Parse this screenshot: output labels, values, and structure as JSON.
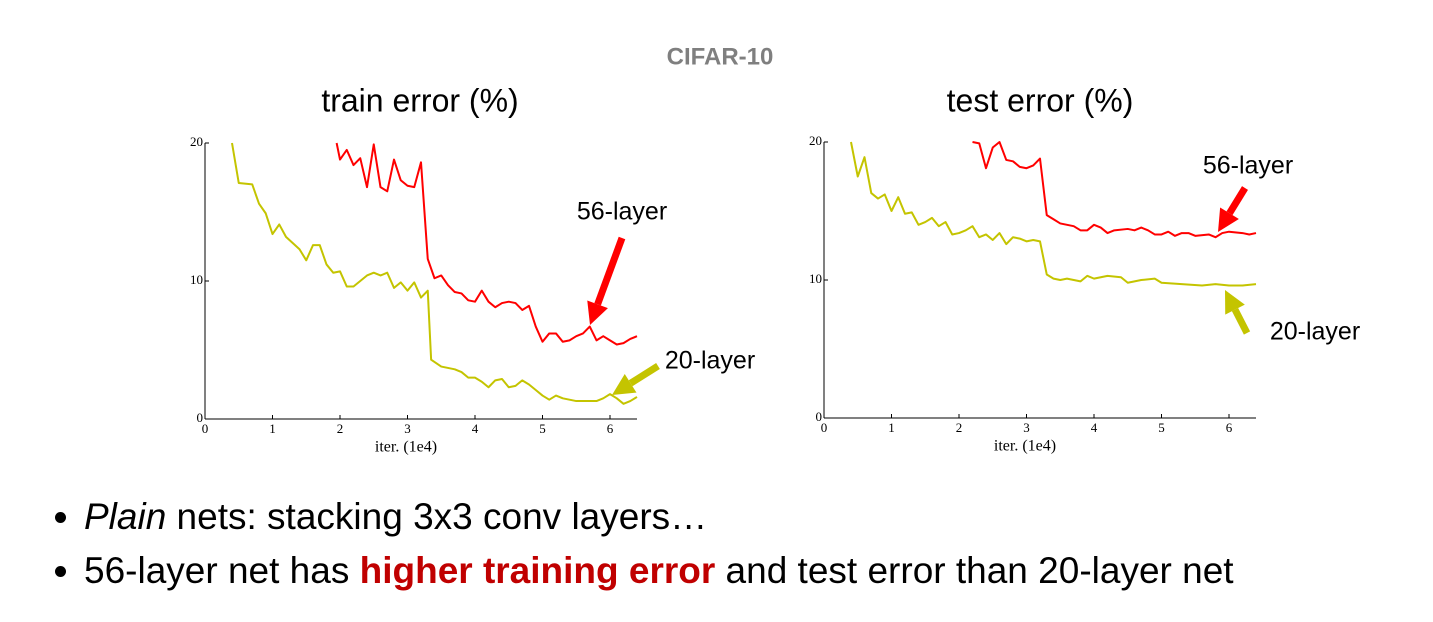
{
  "header": "CIFAR-10",
  "chart_data": [
    {
      "type": "line",
      "title": "train error (%)",
      "xlabel": "iter. (1e4)",
      "xlim": [
        0,
        6.4
      ],
      "ylim": [
        0,
        20
      ],
      "xticks": [
        0,
        1,
        2,
        3,
        4,
        5,
        6
      ],
      "yticks": [
        0,
        10,
        20
      ],
      "annotations": [
        "56-layer",
        "20-layer"
      ],
      "series": [
        {
          "name": "56-layer",
          "color": "#ff0000",
          "x": [
            1.95,
            2.0,
            2.1,
            2.2,
            2.3,
            2.4,
            2.5,
            2.6,
            2.7,
            2.8,
            2.9,
            3.0,
            3.1,
            3.2,
            3.3,
            3.4,
            3.5,
            3.6,
            3.7,
            3.8,
            3.9,
            4.0,
            4.1,
            4.2,
            4.3,
            4.4,
            4.5,
            4.6,
            4.7,
            4.8,
            4.9,
            5.0,
            5.1,
            5.2,
            5.3,
            5.4,
            5.5,
            5.6,
            5.7,
            5.8,
            5.9,
            6.0,
            6.1,
            6.2,
            6.3,
            6.4
          ],
          "values": [
            20,
            18.8,
            19.5,
            18.4,
            18.9,
            16.8,
            19.9,
            16.8,
            16.5,
            18.8,
            17.3,
            16.9,
            16.8,
            18.6,
            11.6,
            10.2,
            10.4,
            9.7,
            9.2,
            9.1,
            8.6,
            8.5,
            9.3,
            8.5,
            8.1,
            8.4,
            8.5,
            8.4,
            7.9,
            8.2,
            6.7,
            5.6,
            6.2,
            6.2,
            5.6,
            5.7,
            6.0,
            6.2,
            6.7,
            5.7,
            6.0,
            5.7,
            5.4,
            5.5,
            5.8,
            6.0
          ]
        },
        {
          "name": "20-layer",
          "color": "#c4c400",
          "x": [
            0.4,
            0.5,
            0.7,
            0.8,
            0.9,
            1.0,
            1.1,
            1.2,
            1.4,
            1.5,
            1.6,
            1.7,
            1.8,
            1.9,
            2.0,
            2.1,
            2.2,
            2.4,
            2.5,
            2.6,
            2.7,
            2.8,
            2.9,
            3.0,
            3.1,
            3.2,
            3.3,
            3.35,
            3.5,
            3.7,
            3.8,
            3.9,
            4.0,
            4.1,
            4.2,
            4.3,
            4.4,
            4.5,
            4.6,
            4.7,
            4.8,
            4.9,
            5.0,
            5.1,
            5.2,
            5.3,
            5.5,
            5.7,
            5.8,
            5.9,
            6.0,
            6.1,
            6.2,
            6.3,
            6.4
          ],
          "values": [
            20,
            17.1,
            17.0,
            15.6,
            14.9,
            13.4,
            14.1,
            13.2,
            12.3,
            11.5,
            12.6,
            12.6,
            11.2,
            10.6,
            10.7,
            9.6,
            9.6,
            10.4,
            10.6,
            10.4,
            10.6,
            9.5,
            9.9,
            9.3,
            9.9,
            8.8,
            9.3,
            4.3,
            3.8,
            3.6,
            3.4,
            3.0,
            3.0,
            2.7,
            2.3,
            2.8,
            2.9,
            2.3,
            2.4,
            2.8,
            2.5,
            2.1,
            1.7,
            1.4,
            1.7,
            1.5,
            1.3,
            1.3,
            1.3,
            1.5,
            1.8,
            1.5,
            1.1,
            1.3,
            1.6
          ]
        }
      ]
    },
    {
      "type": "line",
      "title": "test error (%)",
      "xlabel": "iter. (1e4)",
      "xlim": [
        0,
        6.4
      ],
      "ylim": [
        0,
        20
      ],
      "xticks": [
        0,
        1,
        2,
        3,
        4,
        5,
        6
      ],
      "yticks": [
        0,
        10,
        20
      ],
      "annotations": [
        "56-layer",
        "20-layer"
      ],
      "series": [
        {
          "name": "56-layer",
          "color": "#ff0000",
          "x": [
            2.2,
            2.3,
            2.4,
            2.5,
            2.6,
            2.7,
            2.8,
            2.9,
            3.0,
            3.1,
            3.2,
            3.3,
            3.4,
            3.5,
            3.7,
            3.8,
            3.9,
            4.0,
            4.1,
            4.2,
            4.3,
            4.5,
            4.6,
            4.7,
            4.8,
            4.9,
            5.0,
            5.1,
            5.2,
            5.3,
            5.4,
            5.5,
            5.7,
            5.8,
            5.9,
            6.0,
            6.2,
            6.3,
            6.4
          ],
          "values": [
            20,
            19.9,
            18.1,
            19.6,
            20,
            18.7,
            18.6,
            18.2,
            18.1,
            18.3,
            18.8,
            14.7,
            14.4,
            14.1,
            13.9,
            13.6,
            13.6,
            14.0,
            13.8,
            13.4,
            13.6,
            13.7,
            13.6,
            13.8,
            13.6,
            13.3,
            13.3,
            13.5,
            13.2,
            13.4,
            13.4,
            13.2,
            13.3,
            13.1,
            13.4,
            13.5,
            13.4,
            13.3,
            13.4
          ]
        },
        {
          "name": "20-layer",
          "color": "#c4c400",
          "x": [
            0.4,
            0.5,
            0.6,
            0.7,
            0.8,
            0.9,
            1.0,
            1.1,
            1.2,
            1.3,
            1.4,
            1.5,
            1.6,
            1.7,
            1.8,
            1.9,
            2.0,
            2.1,
            2.2,
            2.3,
            2.4,
            2.5,
            2.6,
            2.7,
            2.8,
            2.9,
            3.0,
            3.1,
            3.2,
            3.3,
            3.4,
            3.5,
            3.6,
            3.7,
            3.8,
            3.9,
            4.0,
            4.2,
            4.4,
            4.5,
            4.7,
            4.9,
            5.0,
            5.3,
            5.6,
            5.8,
            6.0,
            6.2,
            6.4
          ],
          "values": [
            20,
            17.5,
            18.9,
            16.3,
            15.9,
            16.2,
            15.0,
            16.0,
            14.8,
            14.9,
            14.0,
            14.2,
            14.5,
            13.9,
            14.2,
            13.3,
            13.4,
            13.6,
            13.9,
            13.1,
            13.3,
            12.9,
            13.4,
            12.6,
            13.1,
            13.0,
            12.8,
            12.9,
            12.8,
            10.4,
            10.1,
            10.0,
            10.1,
            10.0,
            9.9,
            10.3,
            10.1,
            10.3,
            10.2,
            9.8,
            10.0,
            10.1,
            9.8,
            9.7,
            9.6,
            9.7,
            9.6,
            9.6,
            9.7
          ]
        }
      ]
    }
  ],
  "bullets": [
    [
      "Plain",
      " nets: stacking 3x3 conv layers…"
    ],
    [
      "56-layer net has ",
      "higher training error",
      " and test error than 20-layer net"
    ]
  ]
}
